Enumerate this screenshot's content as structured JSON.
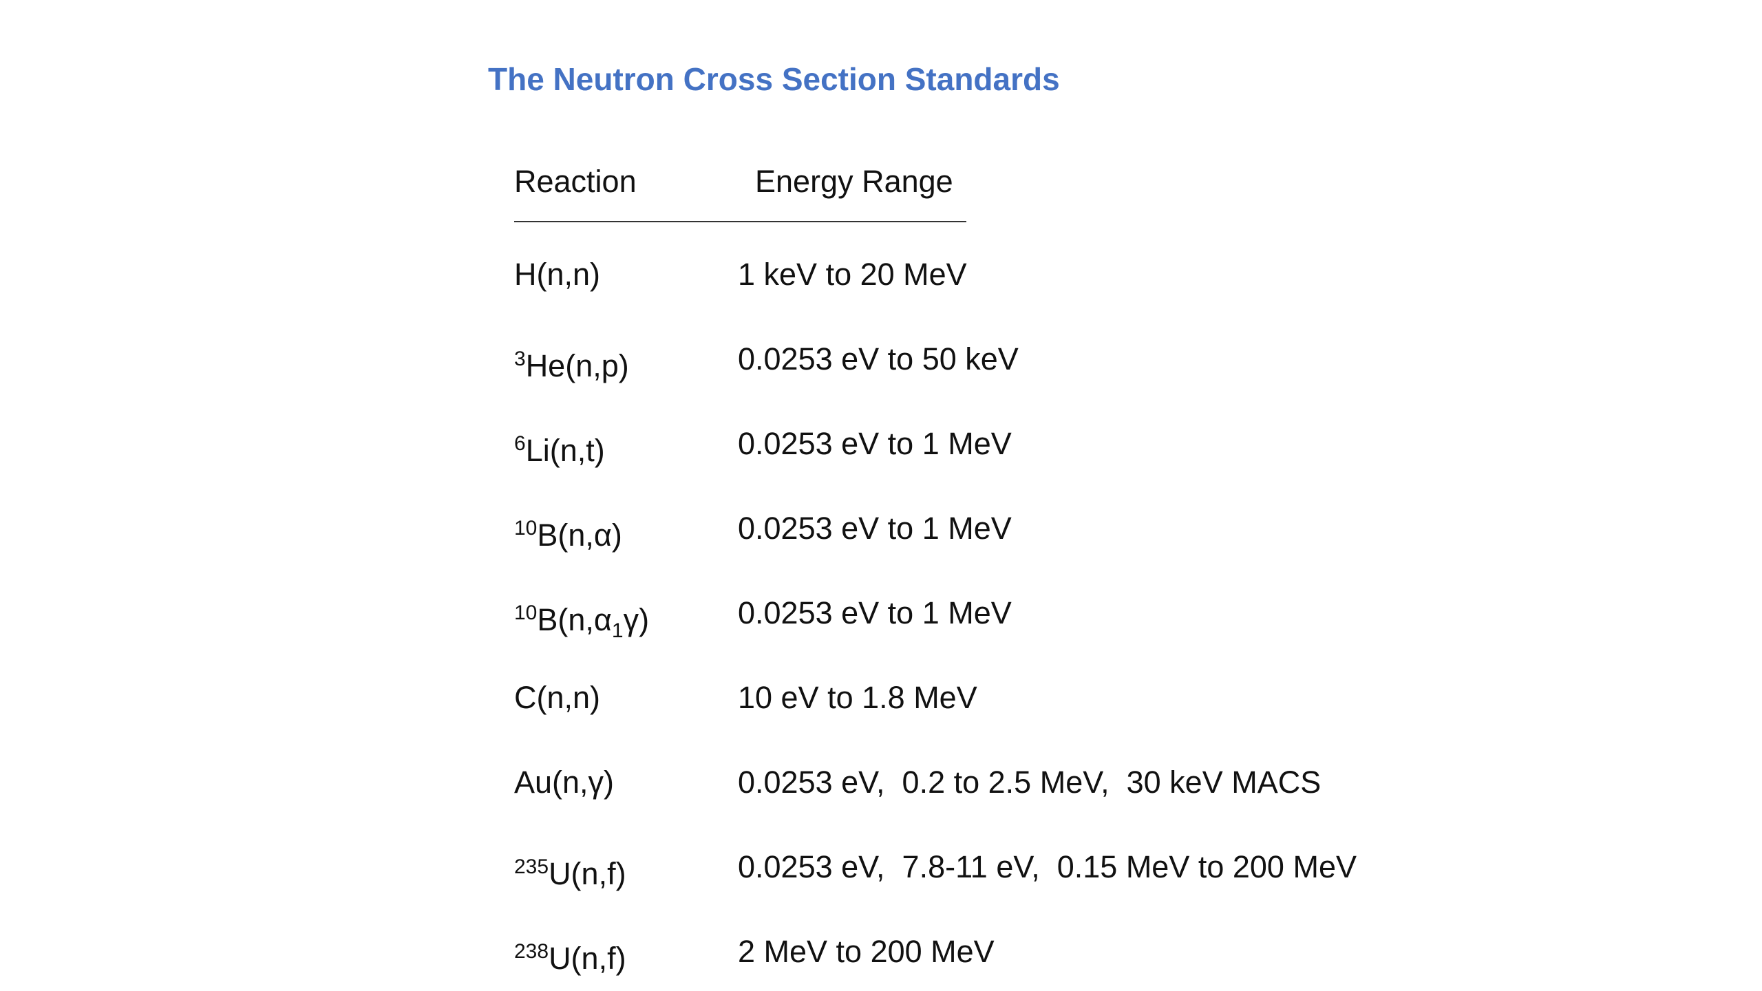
{
  "title": "The Neutron Cross Section Standards",
  "table": {
    "header": [
      "Reaction",
      "Energy Range"
    ],
    "rows": [
      {
        "reaction": [
          {
            "text": "H(n,n)"
          }
        ],
        "energy": "1 keV to 20 MeV"
      },
      {
        "reaction": [
          {
            "sup": "3"
          },
          {
            "text": "He(n,p)"
          }
        ],
        "energy": "0.0253 eV to 50 keV"
      },
      {
        "reaction": [
          {
            "sup": "6"
          },
          {
            "text": "Li(n,t)"
          }
        ],
        "energy": "0.0253 eV to 1 MeV"
      },
      {
        "reaction": [
          {
            "sup": "10"
          },
          {
            "text": "B(n,α)"
          }
        ],
        "energy": "0.0253 eV to 1 MeV"
      },
      {
        "reaction": [
          {
            "sup": "10"
          },
          {
            "text": "B(n,α"
          },
          {
            "sub": "1"
          },
          {
            "text": "γ)"
          }
        ],
        "energy": "0.0253 eV to 1 MeV"
      },
      {
        "reaction": [
          {
            "text": "C(n,n)"
          }
        ],
        "energy": "10 eV to 1.8 MeV"
      },
      {
        "reaction": [
          {
            "text": "Au(n,γ)"
          }
        ],
        "energy": "0.0253 eV,  0.2 to 2.5 MeV,  30 keV MACS"
      },
      {
        "reaction": [
          {
            "sup": "235"
          },
          {
            "text": "U(n,f)"
          }
        ],
        "energy": "0.0253 eV,  7.8-11 eV,  0.15 MeV to 200 MeV"
      },
      {
        "reaction": [
          {
            "sup": "238"
          },
          {
            "text": "U(n,f)"
          }
        ],
        "energy": "2 MeV to 200 MeV"
      }
    ]
  }
}
